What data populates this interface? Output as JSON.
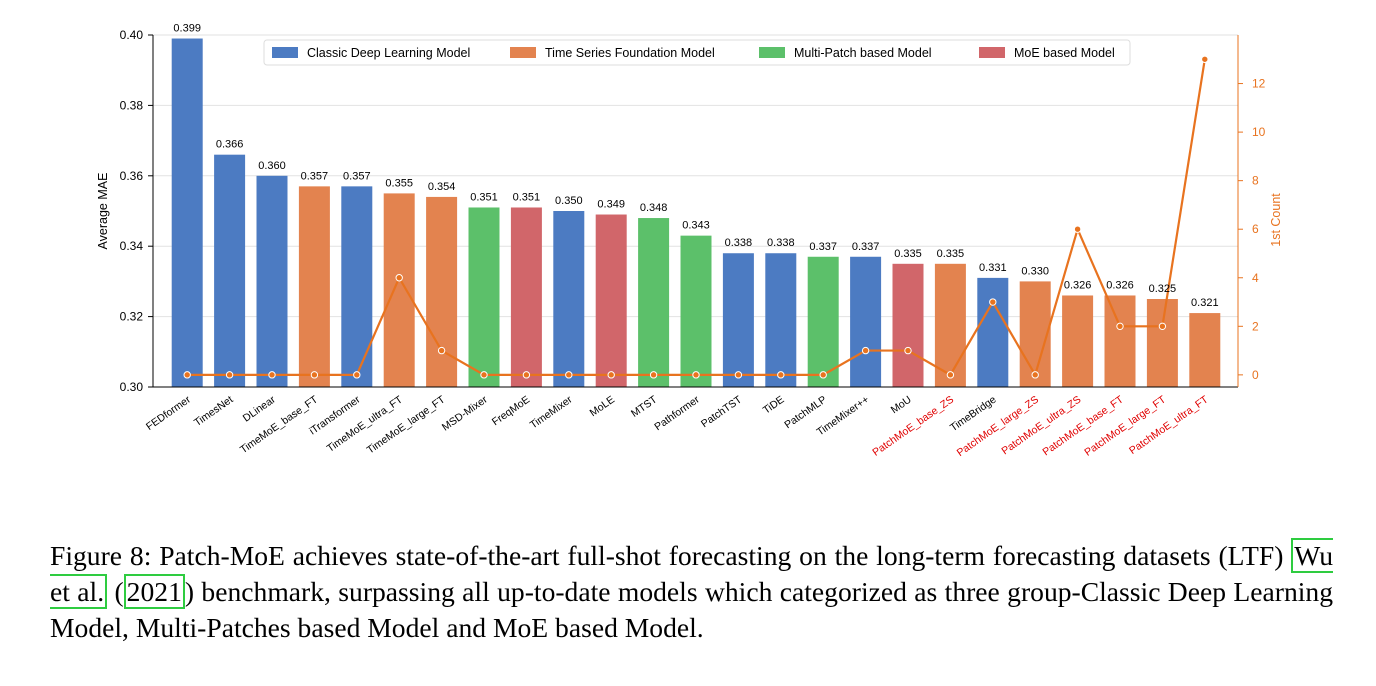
{
  "chart_data": {
    "type": "bar",
    "legend": [
      {
        "name": "Classic Deep Learning Model",
        "color": "#4c7bc2"
      },
      {
        "name": "Time Series Foundation Model",
        "color": "#e3834f"
      },
      {
        "name": "Multi-Patch based Model",
        "color": "#5cc06a"
      },
      {
        "name": "MoE based Model",
        "color": "#d1666a"
      }
    ],
    "legend_position": "top",
    "ylabel": "Average MAE",
    "ylim": [
      0.3,
      0.4
    ],
    "yticks": [
      "0.30",
      "0.32",
      "0.34",
      "0.36",
      "0.38",
      "0.40"
    ],
    "y2label": "1st Count",
    "y2ticks": [
      "0",
      "2",
      "4",
      "6",
      "8",
      "10",
      "12"
    ],
    "y2lim": [
      -0.5,
      14
    ],
    "line_color": "#e8731f",
    "highlight_label_color": "#e00000",
    "bars": [
      {
        "model": "FEDformer",
        "value": 0.399,
        "label": "0.399",
        "group": 0,
        "count": 0,
        "highlight": false
      },
      {
        "model": "TimesNet",
        "value": 0.366,
        "label": "0.366",
        "group": 0,
        "count": 0,
        "highlight": false
      },
      {
        "model": "DLinear",
        "value": 0.36,
        "label": "0.360",
        "group": 0,
        "count": 0,
        "highlight": false
      },
      {
        "model": "TimeMoE_base_FT",
        "value": 0.357,
        "label": "0.357",
        "group": 1,
        "count": 0,
        "highlight": false
      },
      {
        "model": "iTransformer",
        "value": 0.357,
        "label": "0.357",
        "group": 0,
        "count": 0,
        "highlight": false
      },
      {
        "model": "TimeMoE_ultra_FT",
        "value": 0.355,
        "label": "0.355",
        "group": 1,
        "count": 4,
        "highlight": false
      },
      {
        "model": "TimeMoE_large_FT",
        "value": 0.354,
        "label": "0.354",
        "group": 1,
        "count": 1,
        "highlight": false
      },
      {
        "model": "MSD-Mixer",
        "value": 0.351,
        "label": "0.351",
        "group": 2,
        "count": 0,
        "highlight": false
      },
      {
        "model": "FreqMoE",
        "value": 0.351,
        "label": "0.351",
        "group": 3,
        "count": 0,
        "highlight": false
      },
      {
        "model": "TimeMixer",
        "value": 0.35,
        "label": "0.350",
        "group": 0,
        "count": 0,
        "highlight": false
      },
      {
        "model": "MoLE",
        "value": 0.349,
        "label": "0.349",
        "group": 3,
        "count": 0,
        "highlight": false
      },
      {
        "model": "MTST",
        "value": 0.348,
        "label": "0.348",
        "group": 2,
        "count": 0,
        "highlight": false
      },
      {
        "model": "Pathformer",
        "value": 0.343,
        "label": "0.343",
        "group": 2,
        "count": 0,
        "highlight": false
      },
      {
        "model": "PatchTST",
        "value": 0.338,
        "label": "0.338",
        "group": 0,
        "count": 0,
        "highlight": false
      },
      {
        "model": "TiDE",
        "value": 0.338,
        "label": "0.338",
        "group": 0,
        "count": 0,
        "highlight": false
      },
      {
        "model": "PatchMLP",
        "value": 0.337,
        "label": "0.337",
        "group": 2,
        "count": 0,
        "highlight": false
      },
      {
        "model": "TimeMixer++",
        "value": 0.337,
        "label": "0.337",
        "group": 0,
        "count": 1,
        "highlight": false
      },
      {
        "model": "MoU",
        "value": 0.335,
        "label": "0.335",
        "group": 3,
        "count": 1,
        "highlight": false
      },
      {
        "model": "PatchMoE_base_ZS",
        "value": 0.335,
        "label": "0.335",
        "group": 1,
        "count": 0,
        "highlight": true
      },
      {
        "model": "TimeBridge",
        "value": 0.331,
        "label": "0.331",
        "group": 0,
        "count": 3,
        "highlight": false
      },
      {
        "model": "PatchMoE_large_ZS",
        "value": 0.33,
        "label": "0.330",
        "group": 1,
        "count": 0,
        "highlight": true
      },
      {
        "model": "PatchMoE_ultra_ZS",
        "value": 0.326,
        "label": "0.326",
        "group": 1,
        "count": 6,
        "highlight": true
      },
      {
        "model": "PatchMoE_base_FT",
        "value": 0.326,
        "label": "0.326",
        "group": 1,
        "count": 2,
        "highlight": true
      },
      {
        "model": "PatchMoE_large_FT",
        "value": 0.325,
        "label": "0.325",
        "group": 1,
        "count": 2,
        "highlight": true
      },
      {
        "model": "PatchMoE_ultra_FT",
        "value": 0.321,
        "label": "0.321",
        "group": 1,
        "count": 13,
        "highlight": true
      }
    ]
  },
  "caption": {
    "prefix": "Figure 8:  Patch-MoE achieves state-of-the-art full-shot forecasting on the long-term forecasting datasets (LTF) ",
    "cite_author": "Wu et al.",
    "cite_open": " (",
    "cite_year": "2021",
    "cite_close": ")",
    "suffix": " benchmark, surpassing all up-to-date models which categorized as three group-Classic Deep Learning Model, Multi-Patches based Model and MoE based Model."
  }
}
